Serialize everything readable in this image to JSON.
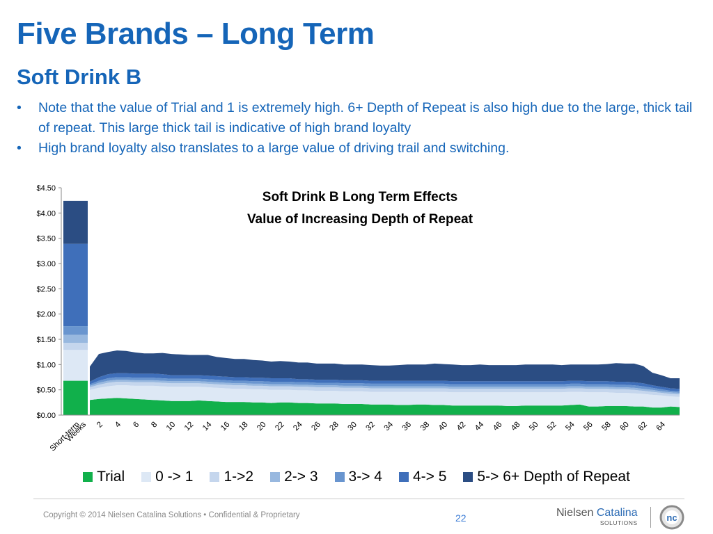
{
  "title": "Five Brands – Long Term",
  "subtitle": "Soft Drink B",
  "bullets": [
    {
      "bullet": "•",
      "text": "Note that the value of Trial and 1 is extremely high.  6+ Depth of Repeat is also high due to the large, thick tail of repeat.  This large thick tail is indicative of high brand loyalty"
    },
    {
      "bullet": "•",
      "text": "High brand loyalty also translates to a large value of driving trail and switching."
    }
  ],
  "chart_data": {
    "type": "area",
    "title": "Soft Drink B Long Term Effects",
    "subtitle": "Value of Increasing Depth of Repeat",
    "xlabel": "",
    "ylabel": "",
    "ylim": [
      0,
      4.5
    ],
    "y_ticks": [
      "$0.00",
      "$0.50",
      "$1.00",
      "$1.50",
      "$2.00",
      "$2.50",
      "$3.00",
      "$3.50",
      "$4.00",
      "$4.50"
    ],
    "x_tick_labels": [
      "Short-term",
      "Weeks",
      "2",
      "4",
      "6",
      "8",
      "10",
      "12",
      "14",
      "16",
      "18",
      "20",
      "22",
      "24",
      "26",
      "28",
      "30",
      "32",
      "34",
      "36",
      "38",
      "40",
      "42",
      "44",
      "46",
      "48",
      "50",
      "52",
      "54",
      "56",
      "58",
      "60",
      "62",
      "64"
    ],
    "short_term": {
      "label": "Short-term",
      "stack_totals": [
        0.68,
        1.29,
        1.43,
        1.59,
        1.76,
        3.39,
        4.24
      ]
    },
    "weeks": [
      0,
      1,
      2,
      3,
      4,
      5,
      6,
      7,
      8,
      9,
      10,
      11,
      12,
      13,
      14,
      15,
      16,
      17,
      18,
      19,
      20,
      21,
      22,
      23,
      24,
      25,
      26,
      27,
      28,
      29,
      30,
      31,
      32,
      33,
      34,
      35,
      36,
      37,
      38,
      39,
      40,
      41,
      42,
      43,
      44,
      45,
      46,
      47,
      48,
      49,
      50,
      51,
      52,
      53,
      54,
      55,
      56,
      57,
      58,
      59,
      60,
      61,
      62,
      63,
      64,
      65
    ],
    "series": [
      {
        "name": "Trial",
        "color": "#11b04b",
        "values": [
          0.3,
          0.32,
          0.33,
          0.34,
          0.33,
          0.32,
          0.31,
          0.3,
          0.29,
          0.28,
          0.28,
          0.28,
          0.29,
          0.28,
          0.27,
          0.26,
          0.26,
          0.26,
          0.25,
          0.25,
          0.24,
          0.25,
          0.25,
          0.24,
          0.24,
          0.23,
          0.23,
          0.23,
          0.22,
          0.22,
          0.22,
          0.21,
          0.21,
          0.21,
          0.2,
          0.2,
          0.21,
          0.21,
          0.2,
          0.2,
          0.19,
          0.19,
          0.19,
          0.19,
          0.19,
          0.19,
          0.18,
          0.18,
          0.19,
          0.19,
          0.19,
          0.19,
          0.19,
          0.2,
          0.21,
          0.17,
          0.17,
          0.18,
          0.18,
          0.18,
          0.17,
          0.17,
          0.15,
          0.15,
          0.17,
          0.16
        ]
      },
      {
        "name": "0 -> 1",
        "color": "#dde8f5",
        "values": [
          0.2,
          0.22,
          0.24,
          0.25,
          0.26,
          0.26,
          0.27,
          0.28,
          0.28,
          0.28,
          0.28,
          0.28,
          0.27,
          0.27,
          0.27,
          0.27,
          0.26,
          0.26,
          0.26,
          0.26,
          0.26,
          0.25,
          0.25,
          0.25,
          0.25,
          0.25,
          0.25,
          0.25,
          0.25,
          0.25,
          0.25,
          0.25,
          0.25,
          0.25,
          0.26,
          0.26,
          0.25,
          0.25,
          0.26,
          0.26,
          0.26,
          0.26,
          0.26,
          0.26,
          0.26,
          0.26,
          0.27,
          0.27,
          0.26,
          0.26,
          0.26,
          0.26,
          0.26,
          0.26,
          0.25,
          0.28,
          0.28,
          0.27,
          0.26,
          0.26,
          0.26,
          0.25,
          0.25,
          0.24,
          0.2,
          0.2
        ]
      },
      {
        "name": "1->2",
        "color": "#c5d6ed",
        "values": [
          0.05,
          0.06,
          0.07,
          0.07,
          0.07,
          0.07,
          0.07,
          0.07,
          0.07,
          0.07,
          0.07,
          0.07,
          0.07,
          0.07,
          0.07,
          0.07,
          0.07,
          0.07,
          0.07,
          0.07,
          0.07,
          0.07,
          0.07,
          0.07,
          0.07,
          0.07,
          0.07,
          0.07,
          0.07,
          0.07,
          0.07,
          0.07,
          0.07,
          0.07,
          0.07,
          0.07,
          0.07,
          0.07,
          0.07,
          0.07,
          0.07,
          0.07,
          0.07,
          0.07,
          0.07,
          0.07,
          0.07,
          0.07,
          0.07,
          0.07,
          0.07,
          0.07,
          0.07,
          0.07,
          0.07,
          0.07,
          0.07,
          0.07,
          0.07,
          0.07,
          0.07,
          0.06,
          0.06,
          0.05,
          0.05,
          0.05
        ]
      },
      {
        "name": "2-> 3",
        "color": "#98b8df",
        "values": [
          0.03,
          0.04,
          0.04,
          0.04,
          0.04,
          0.04,
          0.04,
          0.04,
          0.04,
          0.04,
          0.04,
          0.04,
          0.04,
          0.04,
          0.04,
          0.04,
          0.04,
          0.04,
          0.04,
          0.04,
          0.04,
          0.04,
          0.04,
          0.04,
          0.04,
          0.04,
          0.04,
          0.04,
          0.04,
          0.04,
          0.04,
          0.04,
          0.04,
          0.04,
          0.04,
          0.04,
          0.04,
          0.04,
          0.04,
          0.04,
          0.04,
          0.04,
          0.04,
          0.04,
          0.04,
          0.04,
          0.04,
          0.04,
          0.04,
          0.04,
          0.04,
          0.04,
          0.04,
          0.04,
          0.04,
          0.04,
          0.04,
          0.04,
          0.04,
          0.04,
          0.04,
          0.04,
          0.04,
          0.03,
          0.03,
          0.03
        ]
      },
      {
        "name": "3-> 4",
        "color": "#6995cf",
        "values": [
          0.03,
          0.04,
          0.05,
          0.05,
          0.05,
          0.05,
          0.05,
          0.05,
          0.05,
          0.05,
          0.05,
          0.05,
          0.05,
          0.05,
          0.05,
          0.05,
          0.05,
          0.05,
          0.05,
          0.05,
          0.05,
          0.05,
          0.05,
          0.05,
          0.05,
          0.05,
          0.05,
          0.05,
          0.05,
          0.05,
          0.05,
          0.05,
          0.05,
          0.05,
          0.05,
          0.05,
          0.05,
          0.05,
          0.05,
          0.05,
          0.05,
          0.05,
          0.05,
          0.05,
          0.05,
          0.05,
          0.05,
          0.05,
          0.05,
          0.05,
          0.05,
          0.05,
          0.05,
          0.05,
          0.05,
          0.05,
          0.05,
          0.05,
          0.05,
          0.05,
          0.05,
          0.05,
          0.04,
          0.04,
          0.03,
          0.03
        ]
      },
      {
        "name": "4-> 5",
        "color": "#3f6fba",
        "values": [
          0.05,
          0.07,
          0.08,
          0.08,
          0.08,
          0.08,
          0.08,
          0.08,
          0.08,
          0.07,
          0.07,
          0.07,
          0.07,
          0.07,
          0.07,
          0.07,
          0.07,
          0.07,
          0.07,
          0.07,
          0.07,
          0.07,
          0.07,
          0.06,
          0.06,
          0.06,
          0.06,
          0.06,
          0.06,
          0.06,
          0.06,
          0.06,
          0.06,
          0.06,
          0.06,
          0.06,
          0.06,
          0.06,
          0.06,
          0.06,
          0.06,
          0.06,
          0.06,
          0.06,
          0.06,
          0.06,
          0.06,
          0.06,
          0.06,
          0.06,
          0.06,
          0.06,
          0.06,
          0.06,
          0.06,
          0.06,
          0.06,
          0.06,
          0.06,
          0.06,
          0.06,
          0.06,
          0.05,
          0.05,
          0.05,
          0.05
        ]
      },
      {
        "name": "5-> 6+ Depth of Repeat",
        "color": "#2b4d83",
        "values": [
          0.3,
          0.46,
          0.44,
          0.45,
          0.44,
          0.42,
          0.4,
          0.4,
          0.42,
          0.42,
          0.41,
          0.4,
          0.4,
          0.41,
          0.38,
          0.37,
          0.36,
          0.36,
          0.35,
          0.34,
          0.33,
          0.34,
          0.33,
          0.33,
          0.33,
          0.32,
          0.32,
          0.32,
          0.31,
          0.31,
          0.31,
          0.31,
          0.3,
          0.3,
          0.31,
          0.32,
          0.32,
          0.32,
          0.34,
          0.33,
          0.33,
          0.32,
          0.32,
          0.33,
          0.32,
          0.32,
          0.32,
          0.32,
          0.33,
          0.33,
          0.33,
          0.33,
          0.32,
          0.32,
          0.32,
          0.33,
          0.33,
          0.34,
          0.37,
          0.36,
          0.37,
          0.34,
          0.25,
          0.23,
          0.2,
          0.21
        ]
      }
    ],
    "legend": "bottom"
  },
  "footer": {
    "copyright": "Copyright  ©  2014 Nielsen Catalina Solutions   •   Confidential & Proprietary",
    "page_number": "22",
    "logo_word1": "Nielsen",
    "logo_word2": "Catalina",
    "logo_word3": "SOLUTIONS",
    "logo_mark": "nc"
  }
}
